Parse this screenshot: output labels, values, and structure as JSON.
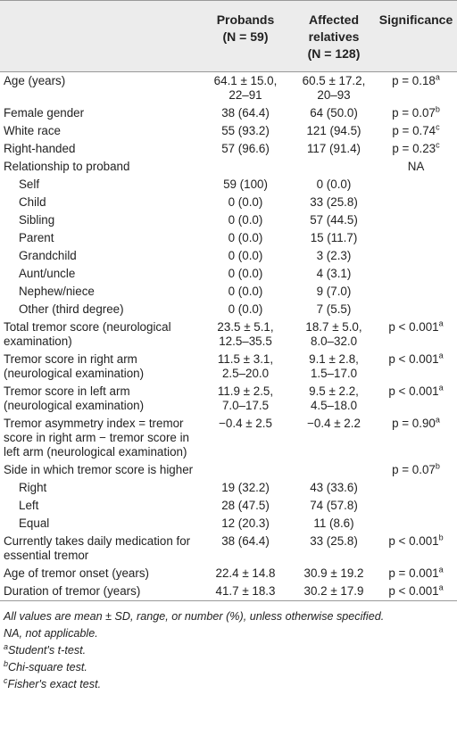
{
  "table": {
    "header": [
      null,
      [
        "Probands",
        "(N = 59)"
      ],
      [
        "Affected",
        "relatives",
        "(N = 128)"
      ],
      [
        "Significance"
      ]
    ],
    "rows": [
      {
        "label": "Age (years)",
        "probands": [
          "64.1 ± 15.0,",
          "22–91"
        ],
        "relatives": [
          "60.5 ± 17.2,",
          "20–93"
        ],
        "significance": {
          "text": "p = 0.18",
          "note": "a"
        }
      },
      {
        "label": "Female gender",
        "probands": [
          "38 (64.4)"
        ],
        "relatives": [
          "64 (50.0)"
        ],
        "significance": {
          "text": "p = 0.07",
          "note": "b"
        }
      },
      {
        "label": "White race",
        "probands": [
          "55 (93.2)"
        ],
        "relatives": [
          "121 (94.5)"
        ],
        "significance": {
          "text": "p = 0.74",
          "note": "c"
        }
      },
      {
        "label": "Right-handed",
        "probands": [
          "57 (96.6)"
        ],
        "relatives": [
          "117 (91.4)"
        ],
        "significance": {
          "text": "p = 0.23",
          "note": "c"
        }
      },
      {
        "label": "Relationship to proband",
        "probands": null,
        "relatives": null,
        "significance": {
          "text": "NA",
          "note": null
        }
      },
      {
        "label": "Self",
        "indent": true,
        "probands": [
          "59 (100)"
        ],
        "relatives": [
          "0 (0.0)"
        ],
        "significance": null
      },
      {
        "label": "Child",
        "indent": true,
        "probands": [
          "0 (0.0)"
        ],
        "relatives": [
          "33 (25.8)"
        ],
        "significance": null
      },
      {
        "label": "Sibling",
        "indent": true,
        "probands": [
          "0 (0.0)"
        ],
        "relatives": [
          "57 (44.5)"
        ],
        "significance": null
      },
      {
        "label": "Parent",
        "indent": true,
        "probands": [
          "0 (0.0)"
        ],
        "relatives": [
          "15 (11.7)"
        ],
        "significance": null
      },
      {
        "label": "Grandchild",
        "indent": true,
        "probands": [
          "0 (0.0)"
        ],
        "relatives": [
          "3 (2.3)"
        ],
        "significance": null
      },
      {
        "label": "Aunt/uncle",
        "indent": true,
        "probands": [
          "0 (0.0)"
        ],
        "relatives": [
          "4 (3.1)"
        ],
        "significance": null
      },
      {
        "label": "Nephew/niece",
        "indent": true,
        "probands": [
          "0 (0.0)"
        ],
        "relatives": [
          "9 (7.0)"
        ],
        "significance": null
      },
      {
        "label": "Other (third degree)",
        "indent": true,
        "probands": [
          "0 (0.0)"
        ],
        "relatives": [
          "7 (5.5)"
        ],
        "significance": null
      },
      {
        "label": "Total tremor score (neurological examination)",
        "probands": [
          "23.5 ± 5.1,",
          "12.5–35.5"
        ],
        "relatives": [
          "18.7 ± 5.0,",
          "8.0–32.0"
        ],
        "significance": {
          "text": "p < 0.001",
          "note": "a"
        }
      },
      {
        "label": "Tremor score in right arm (neurological examination)",
        "probands": [
          "11.5 ± 3.1,",
          "2.5–20.0"
        ],
        "relatives": [
          "9.1 ± 2.8,",
          "1.5–17.0"
        ],
        "significance": {
          "text": "p < 0.001",
          "note": "a"
        }
      },
      {
        "label": "Tremor score in left arm (neurological examination)",
        "probands": [
          "11.9 ± 2.5,",
          "7.0–17.5"
        ],
        "relatives": [
          "9.5 ± 2.2,",
          "4.5–18.0"
        ],
        "significance": {
          "text": "p < 0.001",
          "note": "a"
        }
      },
      {
        "label": "Tremor asymmetry index = tremor score in right arm − tremor score in left arm (neurological examination)",
        "probands": [
          "−0.4 ± 2.5"
        ],
        "relatives": [
          "−0.4 ± 2.2"
        ],
        "significance": {
          "text": "p = 0.90",
          "note": "a"
        }
      },
      {
        "label": "Side in which tremor score is higher",
        "probands": null,
        "relatives": null,
        "significance": {
          "text": "p = 0.07",
          "note": "b"
        }
      },
      {
        "label": "Right",
        "indent": true,
        "probands": [
          "19 (32.2)"
        ],
        "relatives": [
          "43 (33.6)"
        ],
        "significance": null
      },
      {
        "label": "Left",
        "indent": true,
        "probands": [
          "28 (47.5)"
        ],
        "relatives": [
          "74 (57.8)"
        ],
        "significance": null
      },
      {
        "label": "Equal",
        "indent": true,
        "probands": [
          "12 (20.3)"
        ],
        "relatives": [
          "11 (8.6)"
        ],
        "significance": null
      },
      {
        "label": "Currently takes daily medication for essential tremor",
        "probands": [
          "38 (64.4)"
        ],
        "relatives": [
          "33 (25.8)"
        ],
        "significance": {
          "text": "p < 0.001",
          "note": "b"
        }
      },
      {
        "label": "Age of tremor onset (years)",
        "probands": [
          "22.4 ± 14.8"
        ],
        "relatives": [
          "30.9 ± 19.2"
        ],
        "significance": {
          "text": "p = 0.001",
          "note": "a"
        }
      },
      {
        "label": "Duration of tremor (years)",
        "probands": [
          "41.7 ± 18.3"
        ],
        "relatives": [
          "30.2 ± 17.9"
        ],
        "significance": {
          "text": "p < 0.001",
          "note": "a"
        }
      }
    ],
    "footnotes": [
      {
        "mark": null,
        "text": "All values are mean ± SD, range, or number (%), unless otherwise specified."
      },
      {
        "mark": null,
        "text": "NA, not applicable."
      },
      {
        "mark": "a",
        "text": "Student's t-test."
      },
      {
        "mark": "b",
        "text": "Chi-square test."
      },
      {
        "mark": "c",
        "text": "Fisher's exact test."
      }
    ]
  }
}
